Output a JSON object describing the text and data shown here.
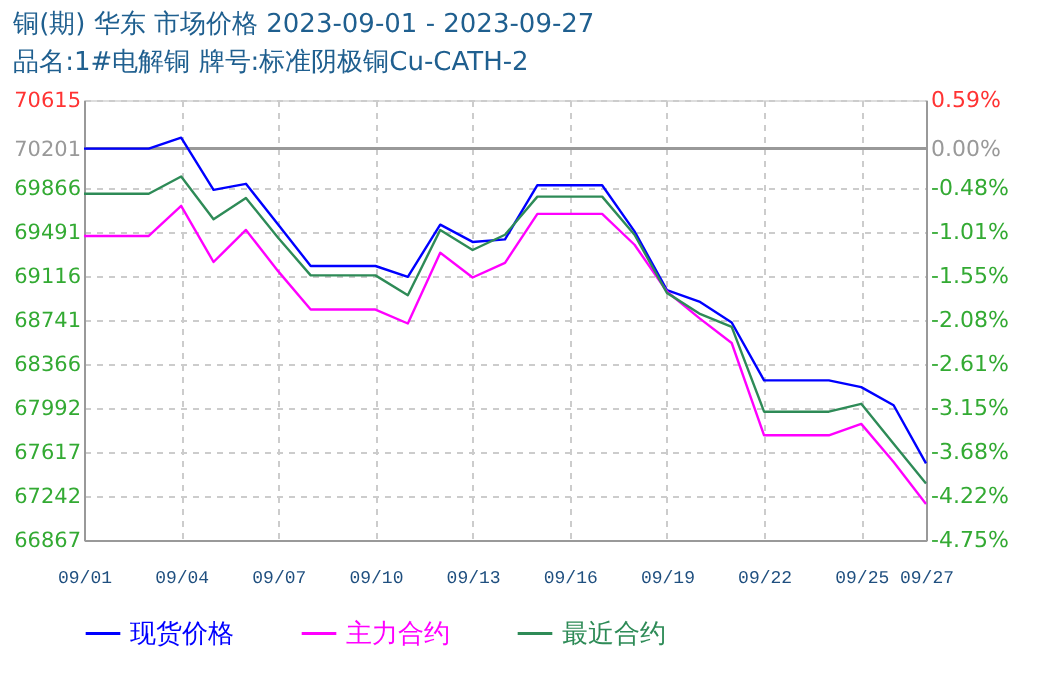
{
  "chart_data": {
    "type": "line",
    "title": "铜(期) 华东 市场价格 2023-09-01 - 2023-09-27",
    "subtitle": "品名:1#电解铜 牌号:标准阴极铜Cu-CATH-2",
    "x": [
      "2023-09-01",
      "2023-09-02",
      "2023-09-03",
      "2023-09-04",
      "2023-09-05",
      "2023-09-06",
      "2023-09-07",
      "2023-09-08",
      "2023-09-09",
      "2023-09-10",
      "2023-09-11",
      "2023-09-12",
      "2023-09-13",
      "2023-09-14",
      "2023-09-15",
      "2023-09-16",
      "2023-09-17",
      "2023-09-18",
      "2023-09-19",
      "2023-09-20",
      "2023-09-21",
      "2023-09-22",
      "2023-09-23",
      "2023-09-24",
      "2023-09-25",
      "2023-09-26",
      "2023-09-27"
    ],
    "series": [
      {
        "name": "现货价格",
        "color": "#0000ff",
        "values": [
          70201,
          70201,
          70201,
          70294,
          69850,
          69901,
          69553,
          69201,
          69201,
          69201,
          69109,
          69553,
          69406,
          69428,
          69889,
          69889,
          69889,
          69496,
          68996,
          68898,
          68720,
          68227,
          68227,
          68227,
          68169,
          68015,
          67520
        ]
      },
      {
        "name": "主力合约",
        "color": "#ff00ff",
        "values": [
          69457,
          69457,
          69457,
          69713,
          69235,
          69508,
          69155,
          68830,
          68830,
          68830,
          68711,
          69314,
          69103,
          69228,
          69645,
          69645,
          69645,
          69382,
          68984,
          68757,
          68545,
          67759,
          67759,
          67759,
          67856,
          67532,
          67173
        ]
      },
      {
        "name": "最近合约",
        "color": "#2e8b57",
        "values": [
          69816,
          69816,
          69816,
          69963,
          69599,
          69781,
          69440,
          69121,
          69121,
          69121,
          68952,
          69508,
          69337,
          69467,
          69792,
          69792,
          69792,
          69467,
          68972,
          68796,
          68682,
          67960,
          67960,
          67960,
          68027,
          67686,
          67349
        ]
      }
    ],
    "xlim": [
      "2023-09-01",
      "2023-09-27"
    ],
    "xticks": [
      {
        "value": "2023-09-01",
        "label": "09/01"
      },
      {
        "value": "2023-09-04",
        "label": "09/04"
      },
      {
        "value": "2023-09-07",
        "label": "09/07"
      },
      {
        "value": "2023-09-10",
        "label": "09/10"
      },
      {
        "value": "2023-09-13",
        "label": "09/13"
      },
      {
        "value": "2023-09-16",
        "label": "09/16"
      },
      {
        "value": "2023-09-19",
        "label": "09/19"
      },
      {
        "value": "2023-09-22",
        "label": "09/22"
      },
      {
        "value": "2023-09-25",
        "label": "09/25"
      },
      {
        "value": "2023-09-27",
        "label": "09/27"
      }
    ],
    "ylim": [
      66867,
      70615
    ],
    "yticks": [
      66867,
      67242,
      67617,
      67992,
      68366,
      68741,
      69116,
      69491,
      69866,
      70201,
      70615
    ],
    "y2lim": [
      -4.75,
      0.59
    ],
    "y2ticks": [
      {
        "value": -4.75,
        "label": "-4.75%"
      },
      {
        "value": -4.22,
        "label": "-4.22%"
      },
      {
        "value": -3.68,
        "label": "-3.68%"
      },
      {
        "value": -3.15,
        "label": "-3.15%"
      },
      {
        "value": -2.61,
        "label": "-2.61%"
      },
      {
        "value": -2.08,
        "label": "-2.08%"
      },
      {
        "value": -1.55,
        "label": "-1.55%"
      },
      {
        "value": -1.01,
        "label": "-1.01%"
      },
      {
        "value": -0.48,
        "label": "-0.48%"
      },
      {
        "value": 0.0,
        "label": "0.00%"
      },
      {
        "value": 0.59,
        "label": "0.59%"
      }
    ],
    "ref_lines": [
      {
        "axis": "y",
        "value": 70201,
        "color": "#999999"
      }
    ],
    "grid": true,
    "legend": "bottom",
    "marker": "none",
    "line_style": "solid"
  }
}
